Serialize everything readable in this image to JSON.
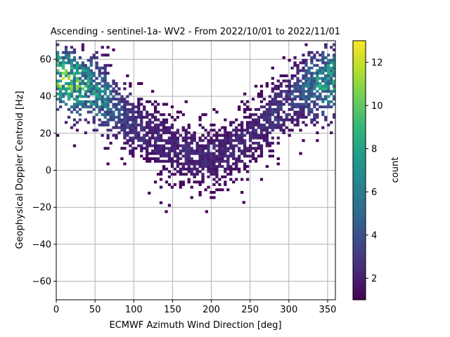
{
  "chart_data": {
    "type": "heatmap",
    "title": "Ascending - sentinel-1a- WV2 - From 2022/10/01 to 2022/11/01",
    "xlabel": "ECMWF Azimuth Wind Direction [deg]",
    "ylabel": "Geophysical Doppler Centroid [Hz]",
    "xlim": [
      0,
      360
    ],
    "ylim": [
      -70,
      70
    ],
    "xticks": [
      0,
      50,
      100,
      150,
      200,
      250,
      300,
      350
    ],
    "yticks": [
      -60,
      -40,
      -20,
      0,
      20,
      40,
      60
    ],
    "grid": true,
    "bin_width_deg": 3.6,
    "bin_height_hz": 1.4,
    "colorbar": {
      "label": "count",
      "range": [
        1,
        13
      ],
      "ticks": [
        2,
        4,
        6,
        8,
        10,
        12
      ],
      "colormap": [
        "#440154",
        "#482878",
        "#3e4989",
        "#31688e",
        "#26828e",
        "#1f9e89",
        "#35b779",
        "#6ece58",
        "#b5de2b",
        "#fde725"
      ]
    },
    "density_profile": {
      "description_of_trend": "V-shaped band",
      "x": [
        0,
        20,
        40,
        60,
        80,
        100,
        120,
        140,
        160,
        180,
        200,
        220,
        240,
        260,
        280,
        300,
        320,
        340,
        360
      ],
      "center_y": [
        50,
        48,
        45,
        40,
        33,
        25,
        20,
        15,
        10,
        8,
        8,
        10,
        15,
        22,
        30,
        38,
        44,
        47,
        50
      ],
      "peak_count": [
        13,
        12,
        10,
        8,
        5,
        4,
        3,
        3,
        3,
        3,
        3,
        3,
        3,
        3,
        4,
        4,
        6,
        9,
        11
      ]
    }
  }
}
